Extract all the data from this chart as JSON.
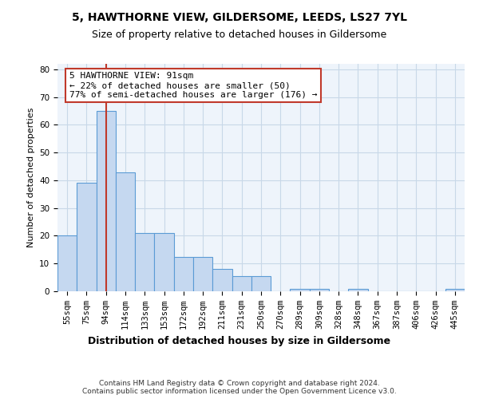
{
  "title1": "5, HAWTHORNE VIEW, GILDERSOME, LEEDS, LS27 7YL",
  "title2": "Size of property relative to detached houses in Gildersome",
  "xlabel": "Distribution of detached houses by size in Gildersome",
  "ylabel": "Number of detached properties",
  "categories": [
    "55sqm",
    "75sqm",
    "94sqm",
    "114sqm",
    "133sqm",
    "153sqm",
    "172sqm",
    "192sqm",
    "211sqm",
    "231sqm",
    "250sqm",
    "270sqm",
    "289sqm",
    "309sqm",
    "328sqm",
    "348sqm",
    "367sqm",
    "387sqm",
    "406sqm",
    "426sqm",
    "445sqm"
  ],
  "values": [
    20,
    39,
    65,
    43,
    21,
    21,
    12.5,
    12.5,
    8,
    5.5,
    5.5,
    0,
    1,
    1,
    0,
    1,
    0,
    0,
    0,
    0,
    1
  ],
  "bar_color": "#c5d8f0",
  "bar_edge_color": "#5b9bd5",
  "highlight_index": 2,
  "highlight_line_color": "#c0392b",
  "annotation_line1": "5 HAWTHORNE VIEW: 91sqm",
  "annotation_line2": "← 22% of detached houses are smaller (50)",
  "annotation_line3": "77% of semi-detached houses are larger (176) →",
  "annotation_box_color": "#ffffff",
  "annotation_box_edge_color": "#c0392b",
  "ylim": [
    0,
    82
  ],
  "yticks": [
    0,
    10,
    20,
    30,
    40,
    50,
    60,
    70,
    80
  ],
  "grid_color": "#c8d8e8",
  "background_color": "#eef4fb",
  "footer_text": "Contains HM Land Registry data © Crown copyright and database right 2024.\nContains public sector information licensed under the Open Government Licence v3.0.",
  "title1_fontsize": 10,
  "title2_fontsize": 9,
  "xlabel_fontsize": 9,
  "ylabel_fontsize": 8,
  "tick_fontsize": 7.5,
  "annotation_fontsize": 8,
  "footer_fontsize": 6.5
}
